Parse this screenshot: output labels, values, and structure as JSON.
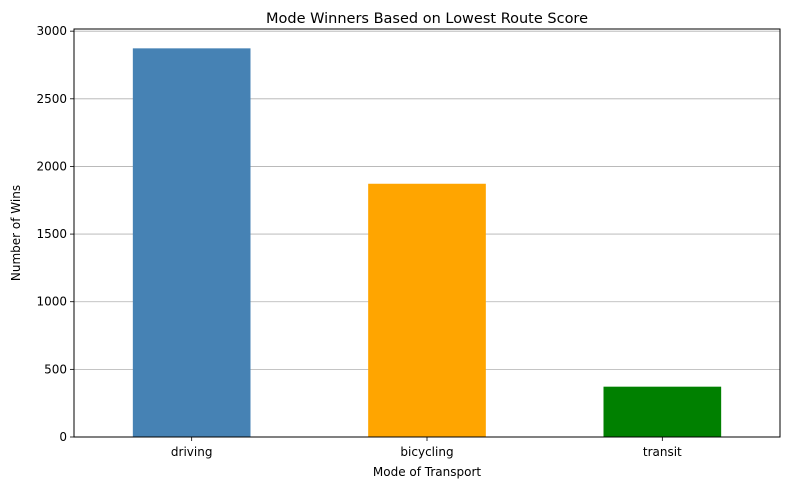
{
  "chart_data": {
    "type": "bar",
    "title": "Mode Winners Based on Lowest Route Score",
    "xlabel": "Mode of Transport",
    "ylabel": "Number of Wins",
    "categories": [
      "driving",
      "bicycling",
      "transit"
    ],
    "values": [
      2873,
      1872,
      372
    ],
    "colors": [
      "#4682b4",
      "#ffa500",
      "#008000"
    ],
    "ylim": [
      0,
      3016
    ],
    "yticks": [
      0,
      500,
      1000,
      1500,
      2000,
      2500,
      3000
    ],
    "grid": {
      "y": true,
      "x": false,
      "color": "#b0b0b0"
    },
    "legend": "none"
  }
}
